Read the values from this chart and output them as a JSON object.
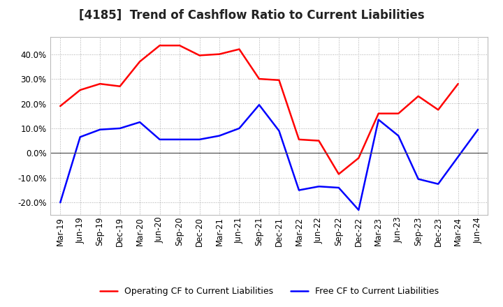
{
  "title": "[4185]  Trend of Cashflow Ratio to Current Liabilities",
  "x_labels": [
    "Mar-19",
    "Jun-19",
    "Sep-19",
    "Dec-19",
    "Mar-20",
    "Jun-20",
    "Sep-20",
    "Dec-20",
    "Mar-21",
    "Jun-21",
    "Sep-21",
    "Dec-21",
    "Mar-22",
    "Jun-22",
    "Sep-22",
    "Dec-22",
    "Mar-23",
    "Jun-23",
    "Sep-23",
    "Dec-23",
    "Mar-24",
    "Jun-24"
  ],
  "operating_cf": [
    19.0,
    25.5,
    28.0,
    27.0,
    37.0,
    43.5,
    43.5,
    39.5,
    40.0,
    42.0,
    30.0,
    29.5,
    5.5,
    5.0,
    -8.5,
    -2.0,
    16.0,
    16.0,
    23.0,
    17.5,
    28.0,
    null
  ],
  "free_cf": [
    -20.0,
    6.5,
    9.5,
    10.0,
    12.5,
    5.5,
    5.5,
    5.5,
    7.0,
    10.0,
    19.5,
    9.0,
    -15.0,
    -13.5,
    -14.0,
    -23.0,
    13.5,
    7.0,
    -10.5,
    -12.5,
    null,
    9.5
  ],
  "operating_color": "#ff0000",
  "free_color": "#0000ff",
  "ylim": [
    -25,
    47
  ],
  "yticks": [
    -20,
    -10,
    0,
    10,
    20,
    30,
    40
  ],
  "background_color": "#ffffff",
  "plot_bg_color": "#ffffff",
  "title_fontsize": 12,
  "tick_fontsize": 8.5,
  "legend_fontsize": 9
}
